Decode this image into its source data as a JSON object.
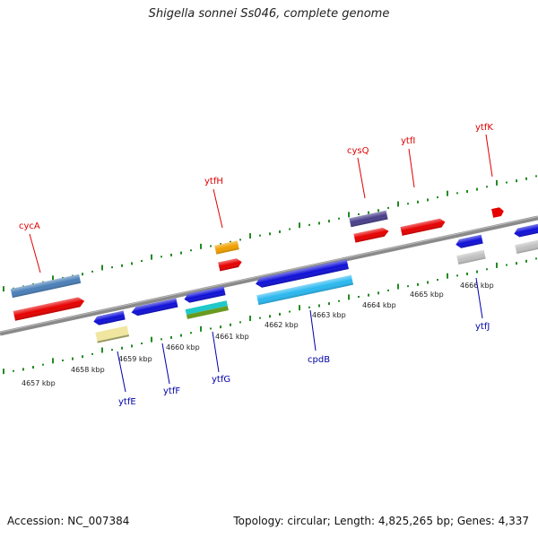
{
  "title": "Shigella sonnei Ss046, complete genome",
  "footer": {
    "accession": "Accession: NC_007384",
    "topology": "Topology: circular; Length: 4,825,265 bp; Genes: 4,337"
  },
  "colors": {
    "backbone": "#808080",
    "ticks": "#228B22",
    "label_top": "#e00000",
    "label_bottom": "#0000aa"
  },
  "scale_labels": [
    {
      "text": "4657 kbp",
      "kbp": 4657
    },
    {
      "text": "4658 kbp",
      "kbp": 4658
    },
    {
      "text": "4659 kbp",
      "kbp": 4659
    },
    {
      "text": "4660 kbp",
      "kbp": 4660
    },
    {
      "text": "4661 kbp",
      "kbp": 4661
    },
    {
      "text": "4662 kbp",
      "kbp": 4662
    },
    {
      "text": "4663 kbp",
      "kbp": 4663
    },
    {
      "text": "4664 kbp",
      "kbp": 4664
    },
    {
      "text": "4665 kbp",
      "kbp": 4665
    },
    {
      "text": "4666 kbp",
      "kbp": 4666
    }
  ],
  "gene_labels": [
    {
      "text": "cycA",
      "side": "top"
    },
    {
      "text": "ytfH",
      "side": "top"
    },
    {
      "text": "cysQ",
      "side": "top"
    },
    {
      "text": "ytfI",
      "side": "top"
    },
    {
      "text": "ytfK",
      "side": "top"
    },
    {
      "text": "ytfE",
      "side": "bottom"
    },
    {
      "text": "ytfF",
      "side": "bottom"
    },
    {
      "text": "ytfG",
      "side": "bottom"
    },
    {
      "text": "cpdB",
      "side": "bottom"
    },
    {
      "text": "ytfJ",
      "side": "bottom"
    }
  ],
  "feature_colors": {
    "gene": "#e60000",
    "cds_forward": "#1010d8",
    "cds_reverse": "#1010d8",
    "rna": "#f0a000",
    "light_blue": "#2ab8f0",
    "steel_blue": "#4a7fb8",
    "purple": "#4a3f8a",
    "cyan": "#20c8c8",
    "olive": "#6a9a20",
    "pale_yellow": "#f0e6a0",
    "gray": "#c0c0c0"
  }
}
